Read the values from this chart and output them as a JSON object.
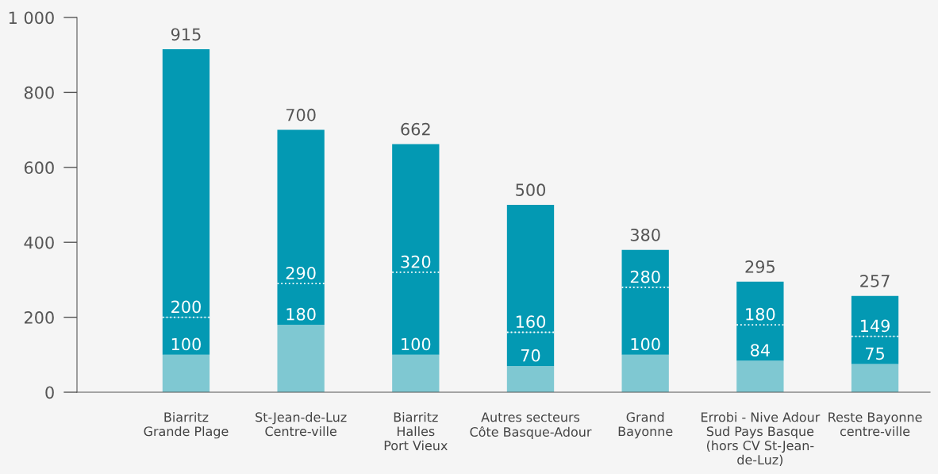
{
  "chart_data": {
    "type": "bar",
    "stacked": true,
    "categories": [
      "Biarritz\nGrande Plage",
      "St-Jean-de-Luz\nCentre-ville",
      "Biarritz\nHalles\nPort Vieux",
      "Autres secteurs\nCôte Basque-Adour",
      "Grand\nBayonne",
      "Errobi - Nive Adour\nSud Pays Basque\n(hors CV St-Jean-\nde-Luz)",
      "Reste Bayonne\ncentre-ville"
    ],
    "series": [
      {
        "color": "#7fc8d2",
        "values": [
          100,
          180,
          100,
          70,
          100,
          84,
          75
        ]
      },
      {
        "color": "#0399b3",
        "values": [
          100,
          110,
          220,
          90,
          180,
          96,
          74
        ]
      },
      {
        "color": "#0399b3",
        "line_style": "dotted",
        "values": [
          715,
          410,
          342,
          340,
          100,
          115,
          108
        ]
      }
    ],
    "annotations": [
      {
        "text": "100",
        "x": "Biarritz\nGrande Plage",
        "y": 100
      },
      {
        "text": "200",
        "x": "Biarritz\nGrande Plage",
        "y": 200
      },
      {
        "text": "180",
        "x": "St-Jean-de-Luz\nCentre-ville",
        "y": 180
      },
      {
        "text": "290",
        "x": "St-Jean-de-Luz\nCentre-ville",
        "y": 290
      },
      {
        "text": "100",
        "x": "Biarritz\nHalles\nPort Vieux",
        "y": 100
      },
      {
        "text": "320",
        "x": "Biarritz\nHalles\nPort Vieux",
        "y": 320
      },
      {
        "text": "70",
        "x": "Autres secteurs\nCôte Basque-Adour",
        "y": 70
      },
      {
        "text": "160",
        "x": "Autres secteurs\nCôte Basque-Adour",
        "y": 160
      },
      {
        "text": "100",
        "x": "Grand\nBayonne",
        "y": 100
      },
      {
        "text": "280",
        "x": "Grand\nBayonne",
        "y": 280
      },
      {
        "text": "84",
        "x": "Errobi - Nive Adour\nSud Pays Basque\n(hors CV St-Jean-\nde-Luz)",
        "y": 84
      },
      {
        "text": "180",
        "x": "Errobi - Nive Adour\nSud Pays Basque\n(hors CV St-Jean-\nde-Luz)",
        "y": 180
      },
      {
        "text": "75",
        "x": "Reste Bayonne\ncentre-ville",
        "y": 75
      },
      {
        "text": "149",
        "x": "Reste Bayonne\ncentre-ville",
        "y": 149
      }
    ],
    "totals": [
      "915",
      "700",
      "662",
      "500",
      "380",
      "295",
      "257"
    ],
    "ylim": [
      0,
      1000
    ],
    "yticks": [
      0,
      200,
      400,
      600,
      800,
      {
        "value": 1000,
        "label": "1 000"
      }
    ],
    "grid": false,
    "legend": false
  }
}
